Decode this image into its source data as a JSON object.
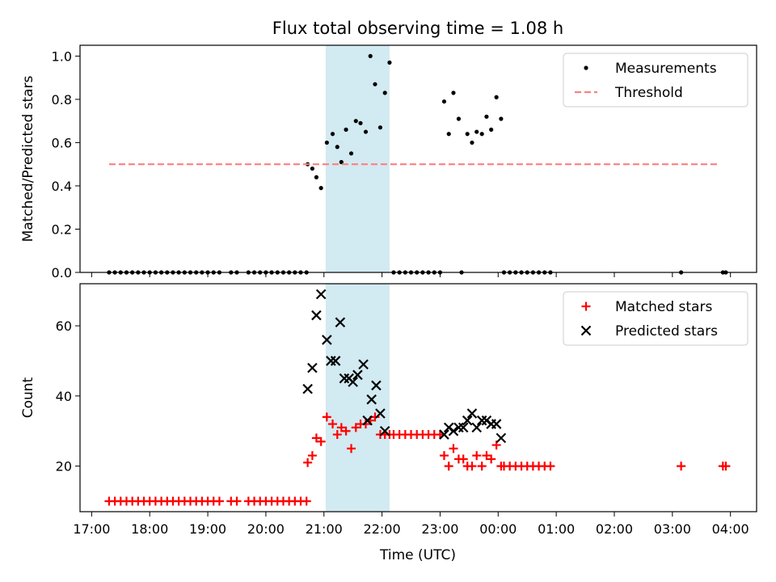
{
  "chart_data": {
    "title": "Flux total observing time = 1.08 h",
    "xlabel": "Time (UTC)",
    "x_unit": "hours since 17:00 UTC",
    "xlim": [
      -0.2,
      11.45
    ],
    "xticks": [
      {
        "x": 0,
        "label": "17:00"
      },
      {
        "x": 1,
        "label": "18:00"
      },
      {
        "x": 2,
        "label": "19:00"
      },
      {
        "x": 3,
        "label": "20:00"
      },
      {
        "x": 4,
        "label": "21:00"
      },
      {
        "x": 5,
        "label": "22:00"
      },
      {
        "x": 6,
        "label": "23:00"
      },
      {
        "x": 7,
        "label": "00:00"
      },
      {
        "x": 8,
        "label": "01:00"
      },
      {
        "x": 9,
        "label": "02:00"
      },
      {
        "x": 10,
        "label": "03:00"
      },
      {
        "x": 11,
        "label": "04:00"
      }
    ],
    "highlight_span": {
      "x": [
        4.03,
        5.13
      ],
      "color": "#add8e6"
    },
    "panels": [
      {
        "type": "scatter",
        "ylabel": "Matched/Predicted stars",
        "ylim": [
          0,
          1.05
        ],
        "yticks": [
          {
            "y": 0,
            "label": "0.0"
          },
          {
            "y": 0.2,
            "label": "0.2"
          },
          {
            "y": 0.4,
            "label": "0.4"
          },
          {
            "y": 0.6,
            "label": "0.6"
          },
          {
            "y": 0.8,
            "label": "0.8"
          },
          {
            "y": 1.0,
            "label": "1.0"
          }
        ],
        "legend": "upper-right",
        "series": [
          {
            "name": "Measurements",
            "marker": "dot",
            "color": "#000000",
            "points": [
              [
                0.3,
                0
              ],
              [
                0.4,
                0
              ],
              [
                0.5,
                0
              ],
              [
                0.6,
                0
              ],
              [
                0.7,
                0
              ],
              [
                0.8,
                0
              ],
              [
                0.9,
                0
              ],
              [
                1.0,
                0
              ],
              [
                1.1,
                0
              ],
              [
                1.2,
                0
              ],
              [
                1.3,
                0
              ],
              [
                1.4,
                0
              ],
              [
                1.5,
                0
              ],
              [
                1.6,
                0
              ],
              [
                1.7,
                0
              ],
              [
                1.8,
                0
              ],
              [
                1.9,
                0
              ],
              [
                2.0,
                0
              ],
              [
                2.1,
                0
              ],
              [
                2.2,
                0
              ],
              [
                2.4,
                0
              ],
              [
                2.5,
                0
              ],
              [
                2.7,
                0
              ],
              [
                2.8,
                0
              ],
              [
                2.9,
                0
              ],
              [
                3.0,
                0
              ],
              [
                3.1,
                0
              ],
              [
                3.2,
                0
              ],
              [
                3.3,
                0
              ],
              [
                3.4,
                0
              ],
              [
                3.5,
                0
              ],
              [
                3.6,
                0
              ],
              [
                3.7,
                0
              ],
              [
                3.72,
                0.5
              ],
              [
                3.8,
                0.48
              ],
              [
                3.87,
                0.44
              ],
              [
                3.95,
                0.39
              ],
              [
                4.05,
                0.6
              ],
              [
                4.15,
                0.64
              ],
              [
                4.23,
                0.58
              ],
              [
                4.3,
                0.51
              ],
              [
                4.38,
                0.66
              ],
              [
                4.47,
                0.55
              ],
              [
                4.55,
                0.7
              ],
              [
                4.63,
                0.69
              ],
              [
                4.72,
                0.65
              ],
              [
                4.8,
                1.0
              ],
              [
                4.88,
                0.87
              ],
              [
                4.97,
                0.67
              ],
              [
                5.05,
                0.83
              ],
              [
                5.13,
                0.97
              ],
              [
                5.2,
                0
              ],
              [
                5.3,
                0
              ],
              [
                5.4,
                0
              ],
              [
                5.5,
                0
              ],
              [
                5.6,
                0
              ],
              [
                5.7,
                0
              ],
              [
                5.8,
                0
              ],
              [
                5.9,
                0
              ],
              [
                6.0,
                0
              ],
              [
                6.07,
                0.79
              ],
              [
                6.15,
                0.64
              ],
              [
                6.23,
                0.83
              ],
              [
                6.32,
                0.71
              ],
              [
                6.37,
                0
              ],
              [
                6.47,
                0.64
              ],
              [
                6.55,
                0.6
              ],
              [
                6.63,
                0.65
              ],
              [
                6.72,
                0.64
              ],
              [
                6.8,
                0.72
              ],
              [
                6.88,
                0.66
              ],
              [
                6.97,
                0.81
              ],
              [
                7.05,
                0.71
              ],
              [
                7.1,
                0
              ],
              [
                7.2,
                0
              ],
              [
                7.3,
                0
              ],
              [
                7.4,
                0
              ],
              [
                7.5,
                0
              ],
              [
                7.6,
                0
              ],
              [
                7.7,
                0
              ],
              [
                7.8,
                0
              ],
              [
                7.9,
                0
              ],
              [
                10.15,
                0
              ],
              [
                10.87,
                0
              ],
              [
                10.92,
                0
              ]
            ]
          },
          {
            "name": "Threshold",
            "marker": "dashed-line",
            "color": "#ff7f7f",
            "points": [
              [
                0.3,
                0.5
              ],
              [
                10.8,
                0.5
              ]
            ]
          }
        ]
      },
      {
        "type": "scatter",
        "ylabel": "Count",
        "ylim": [
          7,
          72
        ],
        "yticks": [
          {
            "y": 20,
            "label": "20"
          },
          {
            "y": 40,
            "label": "40"
          },
          {
            "y": 60,
            "label": "60"
          }
        ],
        "legend": "upper-right",
        "series": [
          {
            "name": "Matched stars",
            "marker": "plus",
            "color": "#ff0000",
            "points": [
              [
                0.3,
                10
              ],
              [
                0.4,
                10
              ],
              [
                0.5,
                10
              ],
              [
                0.6,
                10
              ],
              [
                0.7,
                10
              ],
              [
                0.8,
                10
              ],
              [
                0.9,
                10
              ],
              [
                1.0,
                10
              ],
              [
                1.1,
                10
              ],
              [
                1.2,
                10
              ],
              [
                1.3,
                10
              ],
              [
                1.4,
                10
              ],
              [
                1.5,
                10
              ],
              [
                1.6,
                10
              ],
              [
                1.7,
                10
              ],
              [
                1.8,
                10
              ],
              [
                1.9,
                10
              ],
              [
                2.0,
                10
              ],
              [
                2.1,
                10
              ],
              [
                2.2,
                10
              ],
              [
                2.4,
                10
              ],
              [
                2.5,
                10
              ],
              [
                2.7,
                10
              ],
              [
                2.8,
                10
              ],
              [
                2.9,
                10
              ],
              [
                3.0,
                10
              ],
              [
                3.1,
                10
              ],
              [
                3.2,
                10
              ],
              [
                3.3,
                10
              ],
              [
                3.4,
                10
              ],
              [
                3.5,
                10
              ],
              [
                3.6,
                10
              ],
              [
                3.7,
                10
              ],
              [
                3.72,
                21
              ],
              [
                3.8,
                23
              ],
              [
                3.87,
                28
              ],
              [
                3.95,
                27
              ],
              [
                4.05,
                34
              ],
              [
                4.15,
                32
              ],
              [
                4.23,
                29
              ],
              [
                4.3,
                31
              ],
              [
                4.38,
                30
              ],
              [
                4.47,
                25
              ],
              [
                4.55,
                31
              ],
              [
                4.63,
                32
              ],
              [
                4.72,
                32
              ],
              [
                4.8,
                33
              ],
              [
                4.88,
                34
              ],
              [
                4.97,
                29
              ],
              [
                5.05,
                29
              ],
              [
                5.13,
                29
              ],
              [
                5.2,
                29
              ],
              [
                5.3,
                29
              ],
              [
                5.4,
                29
              ],
              [
                5.5,
                29
              ],
              [
                5.6,
                29
              ],
              [
                5.7,
                29
              ],
              [
                5.8,
                29
              ],
              [
                5.9,
                29
              ],
              [
                6.0,
                29
              ],
              [
                6.07,
                23
              ],
              [
                6.15,
                20
              ],
              [
                6.23,
                25
              ],
              [
                6.32,
                22
              ],
              [
                6.4,
                22
              ],
              [
                6.47,
                20
              ],
              [
                6.55,
                20
              ],
              [
                6.63,
                23
              ],
              [
                6.72,
                20
              ],
              [
                6.8,
                23
              ],
              [
                6.88,
                22
              ],
              [
                6.97,
                26
              ],
              [
                7.05,
                20
              ],
              [
                7.1,
                20
              ],
              [
                7.2,
                20
              ],
              [
                7.3,
                20
              ],
              [
                7.4,
                20
              ],
              [
                7.5,
                20
              ],
              [
                7.6,
                20
              ],
              [
                7.7,
                20
              ],
              [
                7.8,
                20
              ],
              [
                7.9,
                20
              ],
              [
                10.15,
                20
              ],
              [
                10.87,
                20
              ],
              [
                10.92,
                20
              ]
            ]
          },
          {
            "name": "Predicted stars",
            "marker": "x",
            "color": "#000000",
            "points": [
              [
                3.72,
                42
              ],
              [
                3.8,
                48
              ],
              [
                3.87,
                63
              ],
              [
                3.95,
                69
              ],
              [
                4.05,
                56
              ],
              [
                4.12,
                50
              ],
              [
                4.2,
                50
              ],
              [
                4.28,
                61
              ],
              [
                4.35,
                45
              ],
              [
                4.43,
                45
              ],
              [
                4.5,
                44
              ],
              [
                4.58,
                46
              ],
              [
                4.68,
                49
              ],
              [
                4.75,
                33
              ],
              [
                4.82,
                39
              ],
              [
                4.9,
                43
              ],
              [
                4.97,
                35
              ],
              [
                5.05,
                30
              ],
              [
                6.07,
                29
              ],
              [
                6.15,
                31
              ],
              [
                6.23,
                30
              ],
              [
                6.32,
                31
              ],
              [
                6.4,
                31
              ],
              [
                6.47,
                33
              ],
              [
                6.55,
                35
              ],
              [
                6.63,
                31
              ],
              [
                6.72,
                33
              ],
              [
                6.8,
                33
              ],
              [
                6.88,
                32
              ],
              [
                6.97,
                32
              ],
              [
                7.05,
                28
              ]
            ]
          }
        ]
      }
    ]
  }
}
